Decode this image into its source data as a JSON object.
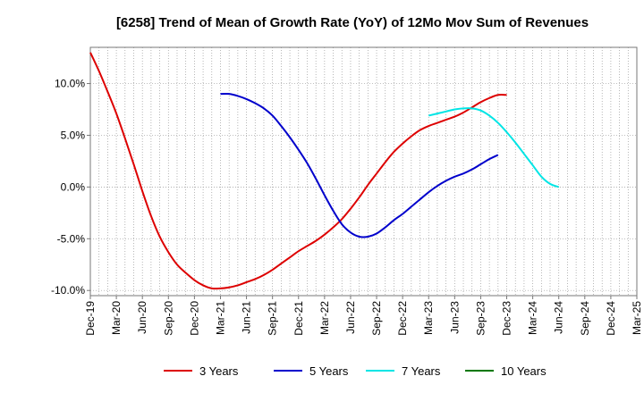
{
  "chart_data": {
    "type": "line",
    "title": "[6258]  Trend of Mean of Growth Rate (YoY) of 12Mo Mov Sum of Revenues",
    "xlabel": "",
    "ylabel": "",
    "ylim": [
      -10.5,
      13.5
    ],
    "grid": true,
    "legend_position": "bottom",
    "x_ticks": [
      "Dec-19",
      "Mar-20",
      "Jun-20",
      "Sep-20",
      "Dec-20",
      "Mar-21",
      "Jun-21",
      "Sep-21",
      "Dec-21",
      "Mar-22",
      "Jun-22",
      "Sep-22",
      "Dec-22",
      "Mar-23",
      "Jun-23",
      "Sep-23",
      "Dec-23",
      "Mar-24",
      "Jun-24",
      "Sep-24",
      "Dec-24",
      "Mar-25"
    ],
    "y_ticks": [
      {
        "value": 10,
        "label": "10.0%"
      },
      {
        "value": 5,
        "label": "5.0%"
      },
      {
        "value": 0,
        "label": "0.0%"
      },
      {
        "value": -5,
        "label": "-5.0%"
      },
      {
        "value": -10,
        "label": "-10.0%"
      }
    ],
    "series": [
      {
        "name": "3 Years",
        "color": "#dd0000",
        "start_index": 0,
        "values": [
          13.0,
          11.2,
          9.2,
          7.1,
          4.7,
          2.2,
          -0.4,
          -2.8,
          -4.8,
          -6.3,
          -7.5,
          -8.3,
          -9.0,
          -9.5,
          -9.8,
          -9.8,
          -9.7,
          -9.5,
          -9.2,
          -8.9,
          -8.5,
          -8.0,
          -7.4,
          -6.8,
          -6.2,
          -5.7,
          -5.2,
          -4.6,
          -3.9,
          -3.1,
          -2.1,
          -1.0,
          0.2,
          1.3,
          2.4,
          3.4,
          4.2,
          4.9,
          5.5,
          5.9,
          6.2,
          6.5,
          6.8,
          7.2,
          7.7,
          8.2,
          8.6,
          8.9,
          8.9
        ]
      },
      {
        "name": "5 Years",
        "color": "#0000cc",
        "start_index": 15,
        "values": [
          9.0,
          9.0,
          8.8,
          8.5,
          8.1,
          7.6,
          6.9,
          5.9,
          4.8,
          3.6,
          2.3,
          0.8,
          -0.8,
          -2.3,
          -3.6,
          -4.4,
          -4.8,
          -4.8,
          -4.5,
          -3.9,
          -3.2,
          -2.6,
          -1.9,
          -1.2,
          -0.5,
          0.1,
          0.6,
          1.0,
          1.3,
          1.7,
          2.2,
          2.7,
          3.1
        ]
      },
      {
        "name": "7 Years",
        "color": "#00e5e5",
        "start_index": 39,
        "values": [
          6.9,
          7.1,
          7.3,
          7.5,
          7.6,
          7.6,
          7.4,
          6.9,
          6.2,
          5.3,
          4.3,
          3.2,
          2.1,
          1.0,
          0.3,
          0.0
        ]
      },
      {
        "name": "10 Years",
        "color": "#007700",
        "start_index": 0,
        "values": []
      }
    ]
  }
}
